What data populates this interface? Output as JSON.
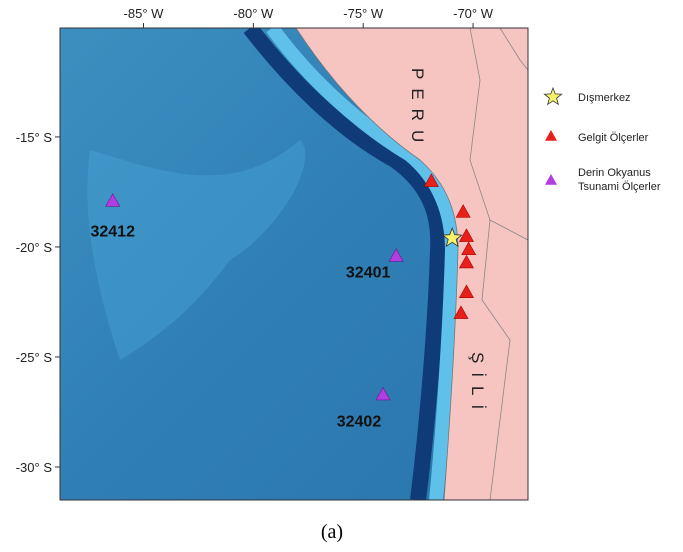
{
  "map": {
    "xlim": [
      -88.8,
      -67.5
    ],
    "ylim": [
      -31.5,
      -10.05
    ],
    "xticks": [
      {
        "value": -85,
        "label": "-85° W"
      },
      {
        "value": -80,
        "label": "-80° W"
      },
      {
        "value": -75,
        "label": "-75° W"
      },
      {
        "value": -70,
        "label": "-70° W"
      }
    ],
    "yticks": [
      {
        "value": -15,
        "label": "-15° S"
      },
      {
        "value": -20,
        "label": "-20° S"
      },
      {
        "value": -25,
        "label": "-25° S"
      },
      {
        "value": -30,
        "label": "-30° S"
      }
    ],
    "countries": [
      "PERU",
      "ŞİLİ"
    ],
    "epicenter": {
      "lon": -70.95,
      "lat": -19.6
    },
    "tide_gauges": [
      {
        "lon": -71.9,
        "lat": -17.0
      },
      {
        "lon": -70.45,
        "lat": -18.4
      },
      {
        "lon": -70.3,
        "lat": -19.5
      },
      {
        "lon": -70.2,
        "lat": -20.1
      },
      {
        "lon": -70.3,
        "lat": -20.7
      },
      {
        "lon": -70.3,
        "lat": -22.05
      },
      {
        "lon": -70.55,
        "lat": -23.0
      }
    ],
    "dart_stations": [
      {
        "name": "32412",
        "lon": -86.4,
        "lat": -17.9
      },
      {
        "name": "32401",
        "lon": -73.5,
        "lat": -20.4
      },
      {
        "name": "32402",
        "lon": -74.1,
        "lat": -26.7
      }
    ],
    "legend": [
      "Dışmerkez",
      "Gelgit Ölçerler",
      "Derin Okyanus Tsunami Ölçerler"
    ],
    "caption": "(a)"
  }
}
